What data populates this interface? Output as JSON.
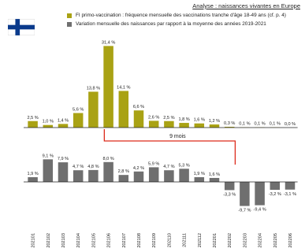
{
  "header": {
    "link_text": "Analyse : naissances vivantes en Europe"
  },
  "flag": {
    "country": "Finland",
    "icon": "finland-flag-icon"
  },
  "colors": {
    "vaccination": "#a9a214",
    "births": "#6f6f6f",
    "annotation": "#dd2a1b"
  },
  "legend": {
    "items": [
      {
        "label": "FI primo-vaccination : fréquence mensuelle des vaccinations tranche d'âge 18-49 ans (cf. p. 4)",
        "color": "#a9a214"
      },
      {
        "label": "Variation mensuelle des naissances par rapport à la moyenne des années 2019-2021",
        "color": "#6f6f6f"
      }
    ]
  },
  "annotation": {
    "label": "9 mois",
    "from": "202106",
    "to": "202203"
  },
  "chart_data": {
    "type": "bar",
    "categories": [
      "202101",
      "202102",
      "202103",
      "202104",
      "202105",
      "202106",
      "202107",
      "202108",
      "202109",
      "202110",
      "202111",
      "202112",
      "202201",
      "202202",
      "202203",
      "202204",
      "202205",
      "202206"
    ],
    "series": [
      {
        "name": "FI primo-vaccination : fréquence mensuelle des vaccinations tranche d'âge 18-49 ans (cf. p. 4)",
        "values": [
          2.5,
          1.0,
          1.4,
          5.6,
          13.8,
          31.4,
          14.1,
          6.6,
          2.6,
          2.5,
          1.8,
          1.6,
          1.2,
          0.3,
          0.1,
          0.1,
          0.1,
          0.0
        ],
        "labels": [
          "2,5 %",
          "1,0 %",
          "1,4 %",
          "5,6 %",
          "13,8 %",
          "31,4 %",
          "14,1 %",
          "6,6 %",
          "2,6 %",
          "2,5 %",
          "1,8 %",
          "1,6 %",
          "1,2 %",
          "0,3 %",
          "0,1 %",
          "0,1 %",
          "0,1 %",
          "0,0 %"
        ]
      },
      {
        "name": "Variation mensuelle des naissances par rapport à la moyenne des années 2019-2021",
        "values": [
          1.9,
          9.1,
          7.9,
          4.7,
          4.8,
          8.0,
          2.8,
          4.2,
          5.9,
          4.7,
          5.3,
          1.9,
          1.6,
          -3.3,
          -9.7,
          -9.4,
          -3.2,
          -3.1
        ],
        "labels": [
          "1,9 %",
          "9,1 %",
          "7,9 %",
          "4,7 %",
          "4,8 %",
          "8,0 %",
          "2,8 %",
          "4,2 %",
          "5,9 %",
          "4,7 %",
          "5,3 %",
          "1,9 %",
          "1,6 %",
          "-3,3 %",
          "-9,7 %",
          "-9,4 %",
          "-3,2 %",
          "-3,1 %"
        ]
      }
    ],
    "title": "",
    "xlabel": "",
    "ylabel": "",
    "grid": false
  }
}
